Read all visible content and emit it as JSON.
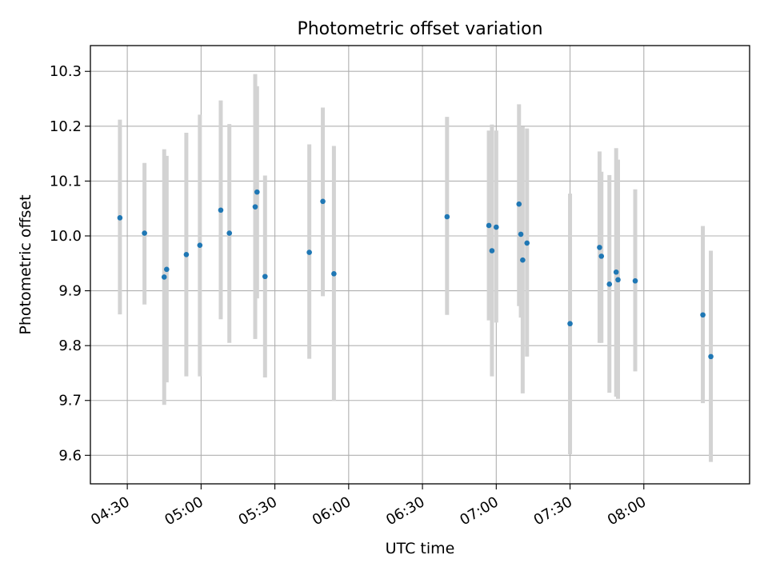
{
  "chart_data": {
    "type": "scatter",
    "title": "Photometric offset variation",
    "xlabel": "UTC time",
    "ylabel": "Photometric offset",
    "x_unit": "UTC time (HH:MM)",
    "xlim": [
      "04:15",
      "08:43"
    ],
    "ylim": [
      9.548,
      10.347
    ],
    "x_ticks": [
      "04:30",
      "05:00",
      "05:30",
      "06:00",
      "06:30",
      "07:00",
      "07:30",
      "08:00"
    ],
    "y_ticks": [
      9.6,
      9.7,
      9.8,
      9.9,
      10.0,
      10.1,
      10.2,
      10.3
    ],
    "grid": true,
    "colors": {
      "point": "#1f77b4",
      "errorbar": "#d3d3d3",
      "grid": "#b0b0b0"
    },
    "series": [
      {
        "points": [
          {
            "x": "04:27:00",
            "y": 10.033,
            "ylow": 9.857,
            "yhigh": 10.212
          },
          {
            "x": "04:37:00",
            "y": 10.005,
            "ylow": 9.875,
            "yhigh": 10.133
          },
          {
            "x": "04:45:00",
            "y": 9.925,
            "ylow": 9.692,
            "yhigh": 10.158
          },
          {
            "x": "04:46:00",
            "y": 9.939,
            "ylow": 9.733,
            "yhigh": 10.146
          },
          {
            "x": "04:54:00",
            "y": 9.966,
            "ylow": 9.744,
            "yhigh": 10.188
          },
          {
            "x": "04:59:30",
            "y": 9.983,
            "ylow": 9.744,
            "yhigh": 10.221
          },
          {
            "x": "05:08:00",
            "y": 10.047,
            "ylow": 9.848,
            "yhigh": 10.247
          },
          {
            "x": "05:11:30",
            "y": 10.005,
            "ylow": 9.805,
            "yhigh": 10.204
          },
          {
            "x": "05:22:00",
            "y": 10.053,
            "ylow": 9.812,
            "yhigh": 10.295
          },
          {
            "x": "05:22:45",
            "y": 10.08,
            "ylow": 9.886,
            "yhigh": 10.273
          },
          {
            "x": "05:26:00",
            "y": 9.926,
            "ylow": 9.742,
            "yhigh": 10.11
          },
          {
            "x": "05:44:00",
            "y": 9.97,
            "ylow": 9.776,
            "yhigh": 10.167
          },
          {
            "x": "05:49:30",
            "y": 10.063,
            "ylow": 9.89,
            "yhigh": 10.234
          },
          {
            "x": "05:54:00",
            "y": 9.931,
            "ylow": 9.699,
            "yhigh": 10.164
          },
          {
            "x": "06:40:00",
            "y": 10.035,
            "ylow": 9.856,
            "yhigh": 10.217
          },
          {
            "x": "06:57:00",
            "y": 10.019,
            "ylow": 9.846,
            "yhigh": 10.192
          },
          {
            "x": "06:58:15",
            "y": 9.973,
            "ylow": 9.744,
            "yhigh": 10.203
          },
          {
            "x": "07:00:00",
            "y": 10.016,
            "ylow": 9.842,
            "yhigh": 10.192
          },
          {
            "x": "07:09:15",
            "y": 10.058,
            "ylow": 9.872,
            "yhigh": 10.24
          },
          {
            "x": "07:10:00",
            "y": 10.003,
            "ylow": 9.851,
            "yhigh": 10.196
          },
          {
            "x": "07:10:45",
            "y": 9.956,
            "ylow": 9.713,
            "yhigh": 10.199
          },
          {
            "x": "07:12:30",
            "y": 9.987,
            "ylow": 9.78,
            "yhigh": 10.196
          },
          {
            "x": "07:30:00",
            "y": 9.84,
            "ylow": 9.602,
            "yhigh": 10.077
          },
          {
            "x": "07:42:00",
            "y": 9.979,
            "ylow": 9.805,
            "yhigh": 10.154
          },
          {
            "x": "07:42:45",
            "y": 9.963,
            "ylow": 9.805,
            "yhigh": 10.117
          },
          {
            "x": "07:46:00",
            "y": 9.912,
            "ylow": 9.714,
            "yhigh": 10.111
          },
          {
            "x": "07:48:45",
            "y": 9.934,
            "ylow": 9.707,
            "yhigh": 10.16
          },
          {
            "x": "07:49:30",
            "y": 9.92,
            "ylow": 9.703,
            "yhigh": 10.139
          },
          {
            "x": "07:56:30",
            "y": 9.918,
            "ylow": 9.753,
            "yhigh": 10.085
          },
          {
            "x": "08:24:00",
            "y": 9.856,
            "ylow": 9.695,
            "yhigh": 10.018
          },
          {
            "x": "08:27:15",
            "y": 9.78,
            "ylow": 9.588,
            "yhigh": 9.973
          }
        ]
      }
    ]
  }
}
